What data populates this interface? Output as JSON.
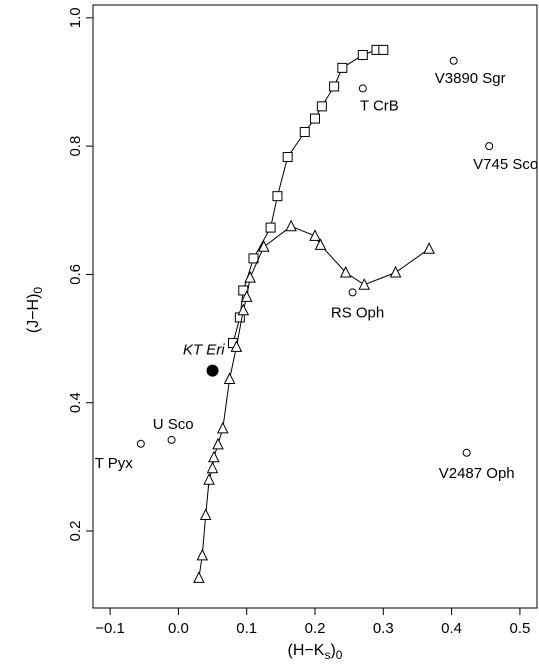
{
  "chart_data": {
    "type": "scatter",
    "xlabel": "(H−K",
    "xlabel_subscript": "s",
    "xlabel_close": ")",
    "xlabel_tail_subscript": "0",
    "ylabel": "(J−H)",
    "ylabel_subscript": "0",
    "xlim": [
      -0.125,
      0.525
    ],
    "ylim": [
      0.08,
      1.02
    ],
    "x_ticks": [
      -0.1,
      0.0,
      0.1,
      0.2,
      0.3,
      0.4,
      0.5
    ],
    "x_tick_labels": [
      "−0.1",
      "0.0",
      "0.1",
      "0.2",
      "0.3",
      "0.4",
      "0.5"
    ],
    "y_ticks": [
      0.2,
      0.4,
      0.6,
      0.8,
      1.0
    ],
    "y_tick_labels": [
      "0.2",
      "0.4",
      "0.6",
      "0.8",
      "1.0"
    ],
    "grid": false,
    "series": [
      {
        "marker": "square",
        "points": [
          [
            0.08,
            0.493
          ],
          [
            0.09,
            0.533
          ],
          [
            0.095,
            0.575
          ],
          [
            0.11,
            0.625
          ],
          [
            0.135,
            0.673
          ],
          [
            0.145,
            0.722
          ],
          [
            0.16,
            0.783
          ],
          [
            0.185,
            0.822
          ],
          [
            0.2,
            0.843
          ],
          [
            0.21,
            0.862
          ],
          [
            0.228,
            0.893
          ],
          [
            0.24,
            0.922
          ],
          [
            0.27,
            0.942
          ],
          [
            0.29,
            0.95
          ],
          [
            0.3,
            0.95
          ]
        ]
      },
      {
        "marker": "triangle",
        "points": [
          [
            0.03,
            0.127
          ],
          [
            0.035,
            0.162
          ],
          [
            0.04,
            0.225
          ],
          [
            0.045,
            0.28
          ],
          [
            0.05,
            0.298
          ],
          [
            0.052,
            0.315
          ],
          [
            0.058,
            0.335
          ],
          [
            0.065,
            0.36
          ],
          [
            0.075,
            0.437
          ],
          [
            0.085,
            0.487
          ],
          [
            0.095,
            0.544
          ],
          [
            0.1,
            0.565
          ],
          [
            0.105,
            0.595
          ],
          [
            0.125,
            0.643
          ],
          [
            0.165,
            0.675
          ],
          [
            0.2,
            0.66
          ],
          [
            0.208,
            0.646
          ],
          [
            0.245,
            0.603
          ],
          [
            0.272,
            0.584
          ],
          [
            0.318,
            0.603
          ],
          [
            0.367,
            0.64
          ]
        ]
      }
    ],
    "stars": [
      {
        "label": "V3890 Sgr",
        "x": 0.403,
        "y": 0.933,
        "filled": false,
        "anchor": "end",
        "dx": 52,
        "dy": 22
      },
      {
        "label": "T CrB",
        "x": 0.27,
        "y": 0.89,
        "filled": false,
        "anchor": "end",
        "dx": 36,
        "dy": 22
      },
      {
        "label": "V745 Sco",
        "x": 0.455,
        "y": 0.8,
        "filled": false,
        "anchor": "end",
        "dx": 49,
        "dy": 23
      },
      {
        "label": "RS Oph",
        "x": 0.255,
        "y": 0.572,
        "filled": false,
        "anchor": "middle",
        "dx": 5,
        "dy": 25
      },
      {
        "label": "KT Eri",
        "x": 0.05,
        "y": 0.45,
        "filled": true,
        "anchor": "end",
        "dx": 12,
        "dy": -16,
        "italic": true
      },
      {
        "label": "U Sco",
        "x": -0.01,
        "y": 0.342,
        "filled": false,
        "anchor": "end",
        "dx": 22,
        "dy": -11
      },
      {
        "label": "T Pyx",
        "x": -0.055,
        "y": 0.336,
        "filled": false,
        "anchor": "end",
        "dx": -8,
        "dy": 24
      },
      {
        "label": "V2487 Oph",
        "x": 0.422,
        "y": 0.322,
        "filled": false,
        "anchor": "end",
        "dx": 48,
        "dy": 25
      }
    ]
  }
}
